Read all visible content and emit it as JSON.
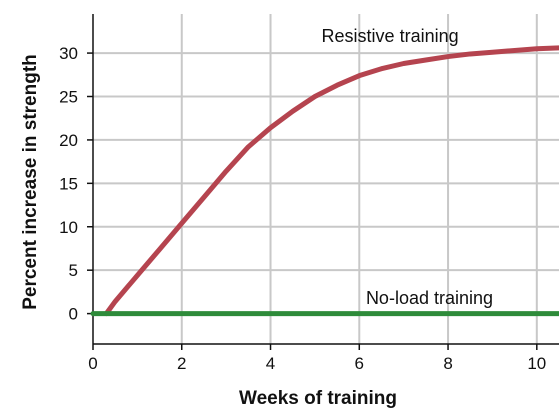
{
  "chart_data": {
    "type": "line",
    "xlabel": "Weeks of training",
    "ylabel": "Percent increase in strength",
    "xlim": [
      0,
      10.5
    ],
    "ylim": [
      -3.5,
      34.5
    ],
    "x_ticks": [
      0,
      2,
      4,
      6,
      8,
      10
    ],
    "y_ticks": [
      0,
      5,
      10,
      15,
      20,
      25,
      30
    ],
    "grid": true,
    "series": [
      {
        "name": "Resistive training",
        "color": "#b5444f",
        "x": [
          0.3,
          0.5,
          1,
          1.5,
          2,
          2.5,
          3,
          3.5,
          4,
          4.5,
          5,
          5.5,
          6,
          6.5,
          7,
          7.5,
          8,
          8.5,
          9,
          9.5,
          10,
          10.5
        ],
        "y": [
          0,
          1.4,
          4.4,
          7.4,
          10.4,
          13.4,
          16.4,
          19.2,
          21.4,
          23.3,
          25.0,
          26.3,
          27.4,
          28.2,
          28.8,
          29.2,
          29.6,
          29.9,
          30.1,
          30.3,
          30.5,
          30.6
        ]
      },
      {
        "name": "No-load training",
        "color": "#2e8b3a",
        "x": [
          0,
          10.5
        ],
        "y": [
          0,
          0
        ]
      }
    ]
  }
}
